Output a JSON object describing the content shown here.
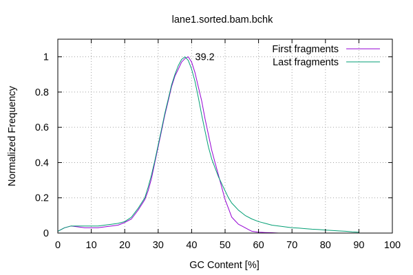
{
  "chart_data": {
    "type": "line",
    "title": "lane1.sorted.bam.bchk",
    "xlabel": "GC Content [%]",
    "ylabel": "Normalized Frequency",
    "xlim": [
      0,
      100
    ],
    "ylim": [
      0,
      1.1
    ],
    "x_ticks": [
      "0",
      "10",
      "20",
      "30",
      "40",
      "50",
      "60",
      "70",
      "80",
      "90",
      "100"
    ],
    "y_ticks": [
      "0",
      "0.2",
      "0.4",
      "0.6",
      "0.8",
      "1"
    ],
    "grid": true,
    "legend_position": "top-right",
    "annotation": {
      "text": "39.2",
      "x": 39.2,
      "y": 1.0
    },
    "series": [
      {
        "name": "First fragments",
        "color": "#9400d3",
        "x": [
          0,
          2,
          4,
          6,
          8,
          10,
          12,
          14,
          16,
          18,
          20,
          22,
          24,
          26,
          27,
          28,
          29,
          30,
          31,
          32,
          33,
          34,
          35,
          36,
          37,
          38,
          39,
          40,
          41,
          42,
          43,
          44,
          45,
          46,
          47,
          48,
          49,
          50,
          51,
          52,
          53,
          54,
          55,
          56,
          57,
          58,
          60,
          62,
          64,
          66
        ],
        "y": [
          0.01,
          0.03,
          0.04,
          0.035,
          0.03,
          0.03,
          0.03,
          0.035,
          0.04,
          0.045,
          0.06,
          0.08,
          0.13,
          0.19,
          0.24,
          0.31,
          0.4,
          0.49,
          0.58,
          0.67,
          0.75,
          0.83,
          0.89,
          0.93,
          0.97,
          0.99,
          1.0,
          0.97,
          0.91,
          0.83,
          0.75,
          0.65,
          0.56,
          0.47,
          0.4,
          0.33,
          0.26,
          0.19,
          0.14,
          0.09,
          0.07,
          0.05,
          0.04,
          0.03,
          0.02,
          0.01,
          0.005,
          0.003,
          0.002,
          0
        ]
      },
      {
        "name": "Last fragments",
        "color": "#009e73",
        "x": [
          0,
          2,
          4,
          6,
          8,
          10,
          12,
          14,
          16,
          18,
          20,
          22,
          24,
          26,
          27,
          28,
          29,
          30,
          31,
          32,
          33,
          34,
          35,
          36,
          37,
          38,
          39,
          40,
          41,
          42,
          43,
          44,
          45,
          46,
          47,
          48,
          49,
          50,
          51,
          52,
          53,
          54,
          55,
          56,
          58,
          60,
          62,
          64,
          66,
          68,
          70,
          72,
          74,
          76,
          78,
          80,
          82,
          84,
          86,
          88,
          90
        ],
        "y": [
          0.01,
          0.03,
          0.04,
          0.04,
          0.04,
          0.04,
          0.04,
          0.045,
          0.05,
          0.055,
          0.065,
          0.09,
          0.14,
          0.2,
          0.26,
          0.33,
          0.41,
          0.5,
          0.59,
          0.68,
          0.76,
          0.84,
          0.9,
          0.95,
          0.985,
          1.0,
          0.98,
          0.93,
          0.86,
          0.77,
          0.67,
          0.58,
          0.49,
          0.42,
          0.37,
          0.32,
          0.28,
          0.24,
          0.2,
          0.17,
          0.15,
          0.13,
          0.115,
          0.1,
          0.08,
          0.065,
          0.055,
          0.045,
          0.04,
          0.035,
          0.03,
          0.028,
          0.025,
          0.022,
          0.02,
          0.017,
          0.015,
          0.012,
          0.01,
          0.007,
          0.005
        ]
      }
    ]
  }
}
